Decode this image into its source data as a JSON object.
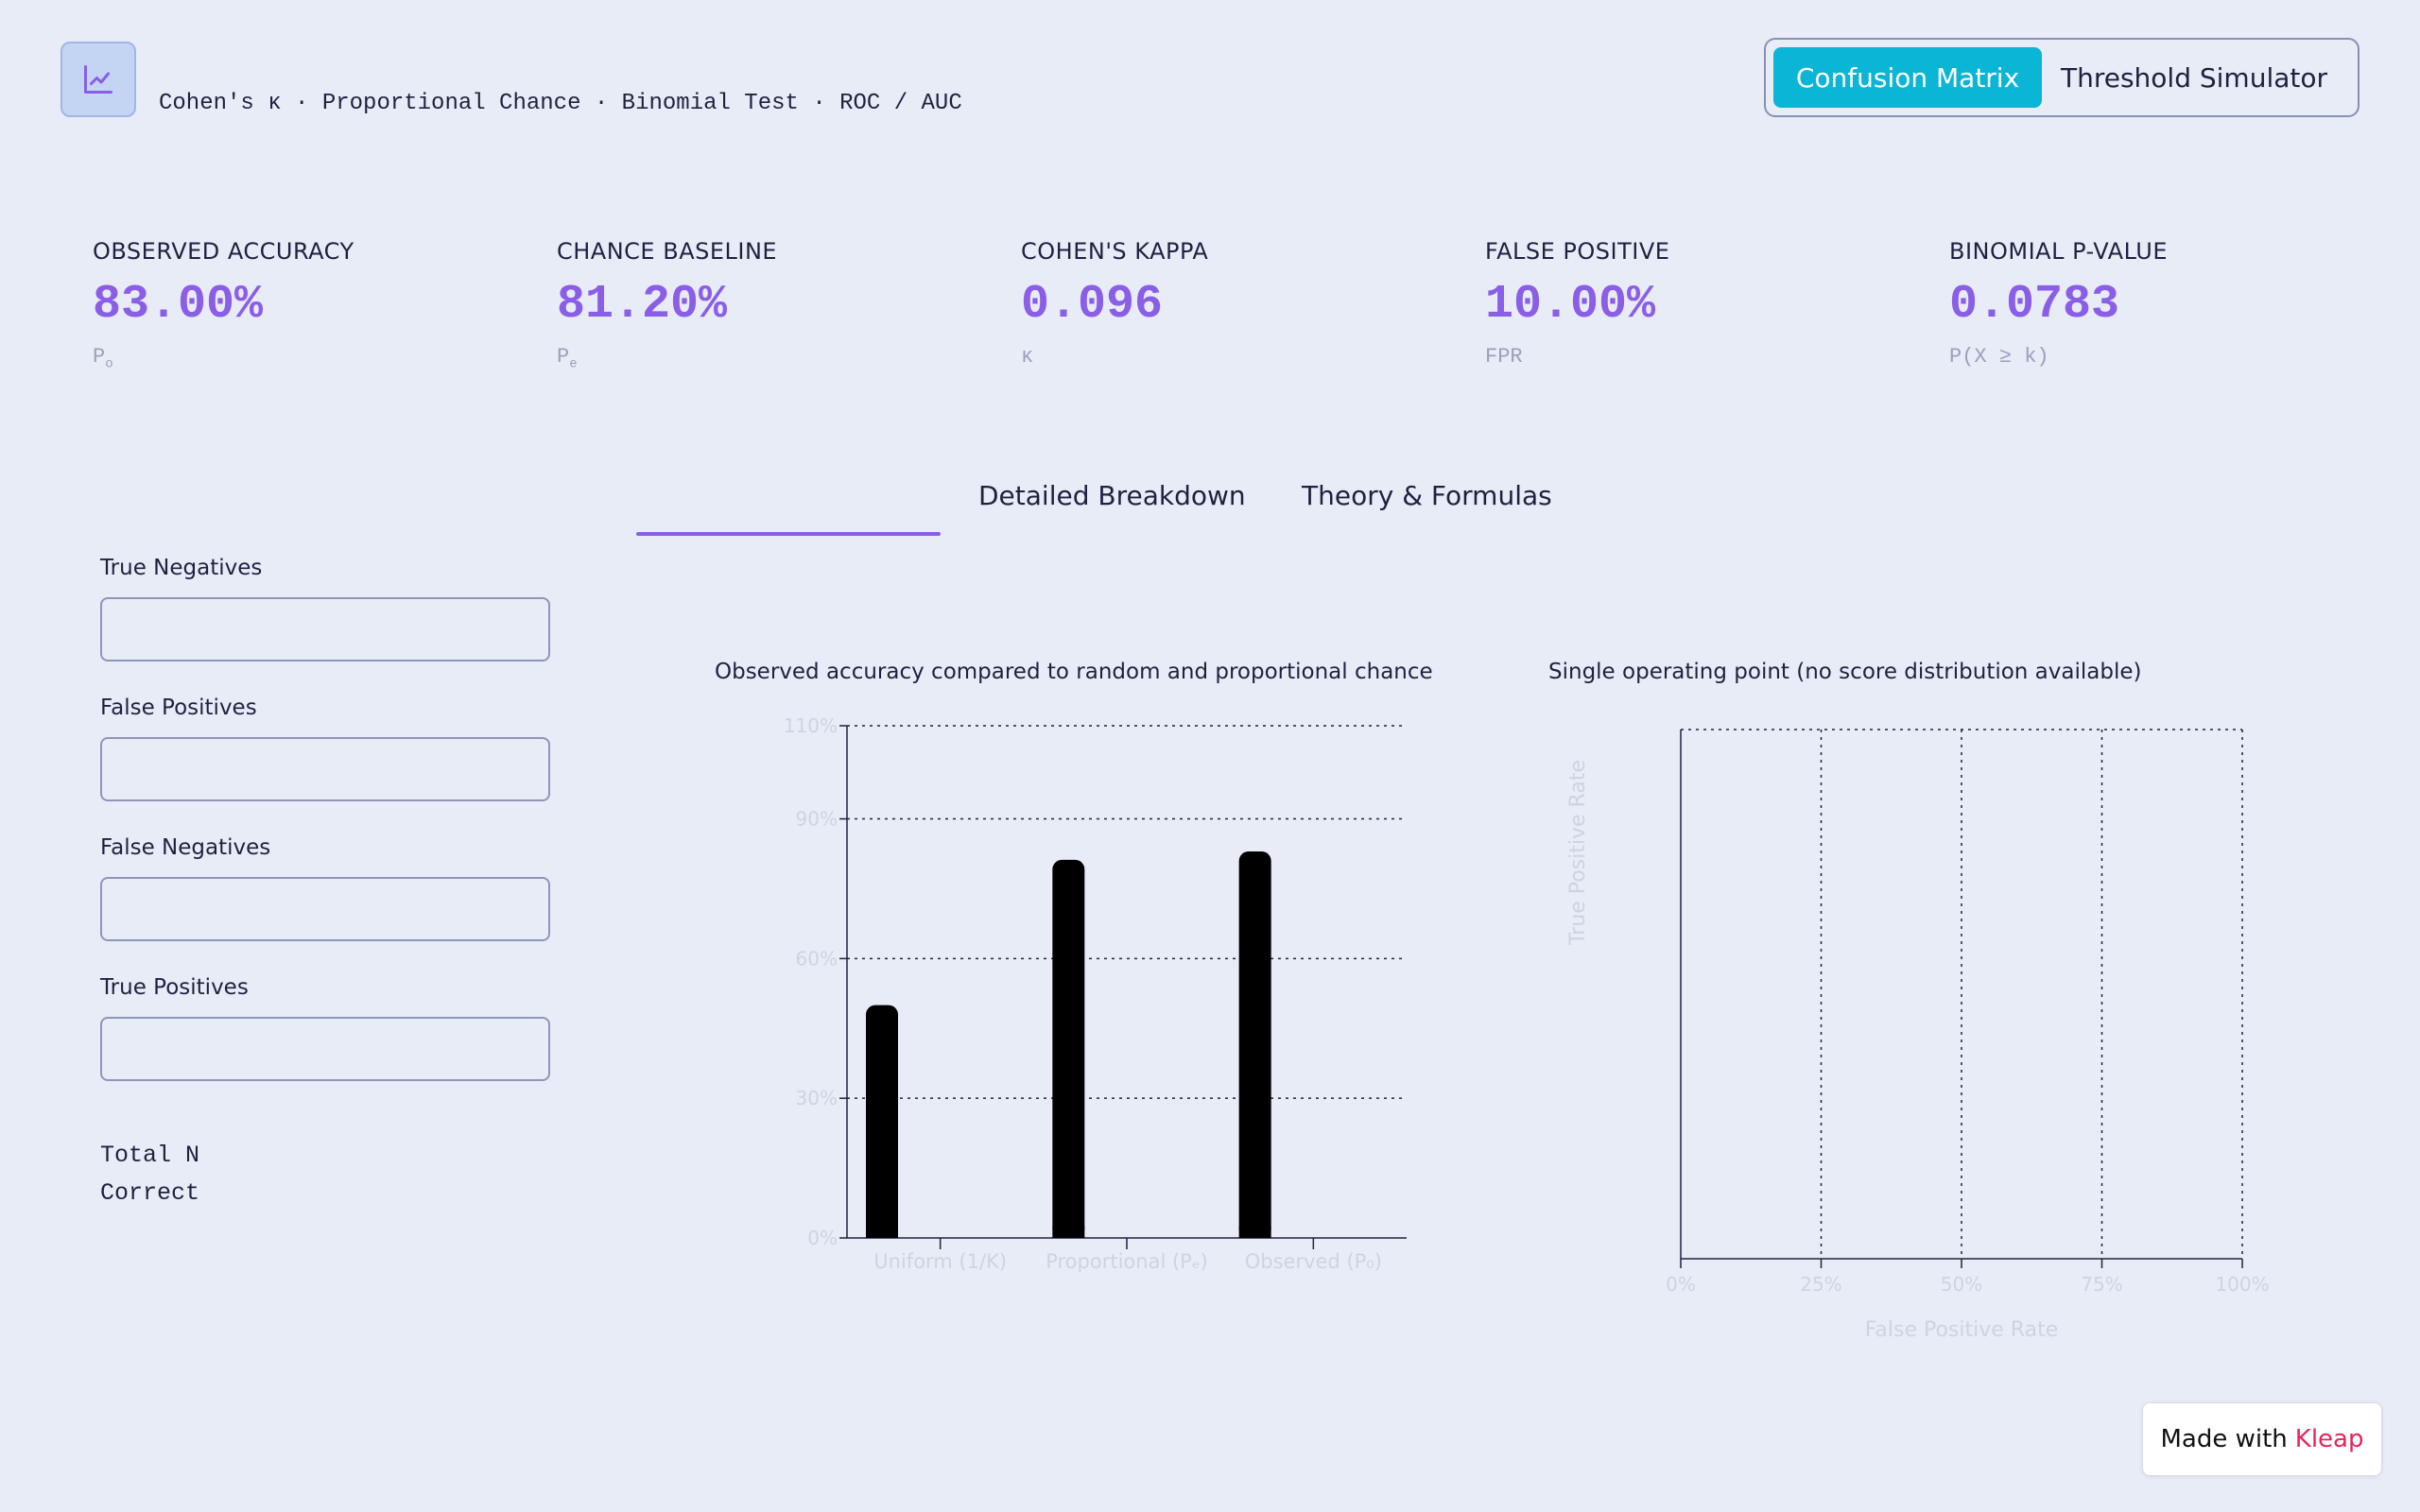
{
  "header": {
    "subtitle": "Cohen's κ · Proportional Chance · Binomial Test · ROC / AUC",
    "logo_icon": "line-chart-icon",
    "modes": [
      {
        "label": "Confusion Matrix",
        "active": true
      },
      {
        "label": "Threshold Simulator",
        "active": false
      }
    ]
  },
  "kpis": [
    {
      "label": "OBSERVED ACCURACY",
      "value": "83.00%",
      "sub": "P",
      "sub_sub": "o"
    },
    {
      "label": "CHANCE BASELINE",
      "value": "81.20%",
      "sub": "P",
      "sub_sub": "e"
    },
    {
      "label": "COHEN'S KAPPA",
      "value": "0.096",
      "sub": "κ",
      "sub_sub": ""
    },
    {
      "label": "FALSE POSITIVE",
      "value": "10.00%",
      "sub": "FPR",
      "sub_sub": ""
    },
    {
      "label": "BINOMIAL P-VALUE",
      "value": "0.0783",
      "sub": "P(X ≥ k)",
      "sub_sub": ""
    }
  ],
  "tabs": [
    {
      "label": "",
      "active": true
    },
    {
      "label": "Detailed Breakdown",
      "active": false
    },
    {
      "label": "Theory & Formulas",
      "active": false
    }
  ],
  "inputs": [
    {
      "label": "True Negatives",
      "value": ""
    },
    {
      "label": "False Positives",
      "value": ""
    },
    {
      "label": "False Negatives",
      "value": ""
    },
    {
      "label": "True Positives",
      "value": ""
    }
  ],
  "summary": {
    "total_label": "Total N",
    "correct_label": "Correct"
  },
  "chart_data": [
    {
      "type": "bar",
      "title": "Observed accuracy compared to random and proportional chance",
      "categories": [
        "Uniform (1/K)",
        "Proportional (Pₑ)",
        "Observed (P₀)"
      ],
      "values": [
        50,
        81.2,
        83
      ],
      "ylim": [
        0,
        110
      ],
      "yticks": [
        0,
        30,
        60,
        90,
        110
      ],
      "ytick_labels": [
        "0%",
        "30%",
        "60%",
        "90%",
        "110%"
      ],
      "xlabel": "",
      "ylabel": "",
      "grid": true,
      "bar_color": "#000000"
    },
    {
      "type": "scatter",
      "title": "Single operating point (no score distribution available)",
      "xlabel": "False Positive Rate",
      "ylabel": "True Positive Rate",
      "xlim": [
        0,
        100
      ],
      "xticks": [
        0,
        25,
        50,
        75,
        100
      ],
      "xtick_labels": [
        "0%",
        "25%",
        "50%",
        "75%",
        "100%"
      ],
      "grid": true,
      "points": []
    }
  ],
  "badge": {
    "prefix": "Made with",
    "brand": "Kleap"
  },
  "colors": {
    "background": "#e8ecf6",
    "accent": "#8a5ee6",
    "mode_active": "#0bb5d6",
    "badge_brand": "#e8245c"
  }
}
